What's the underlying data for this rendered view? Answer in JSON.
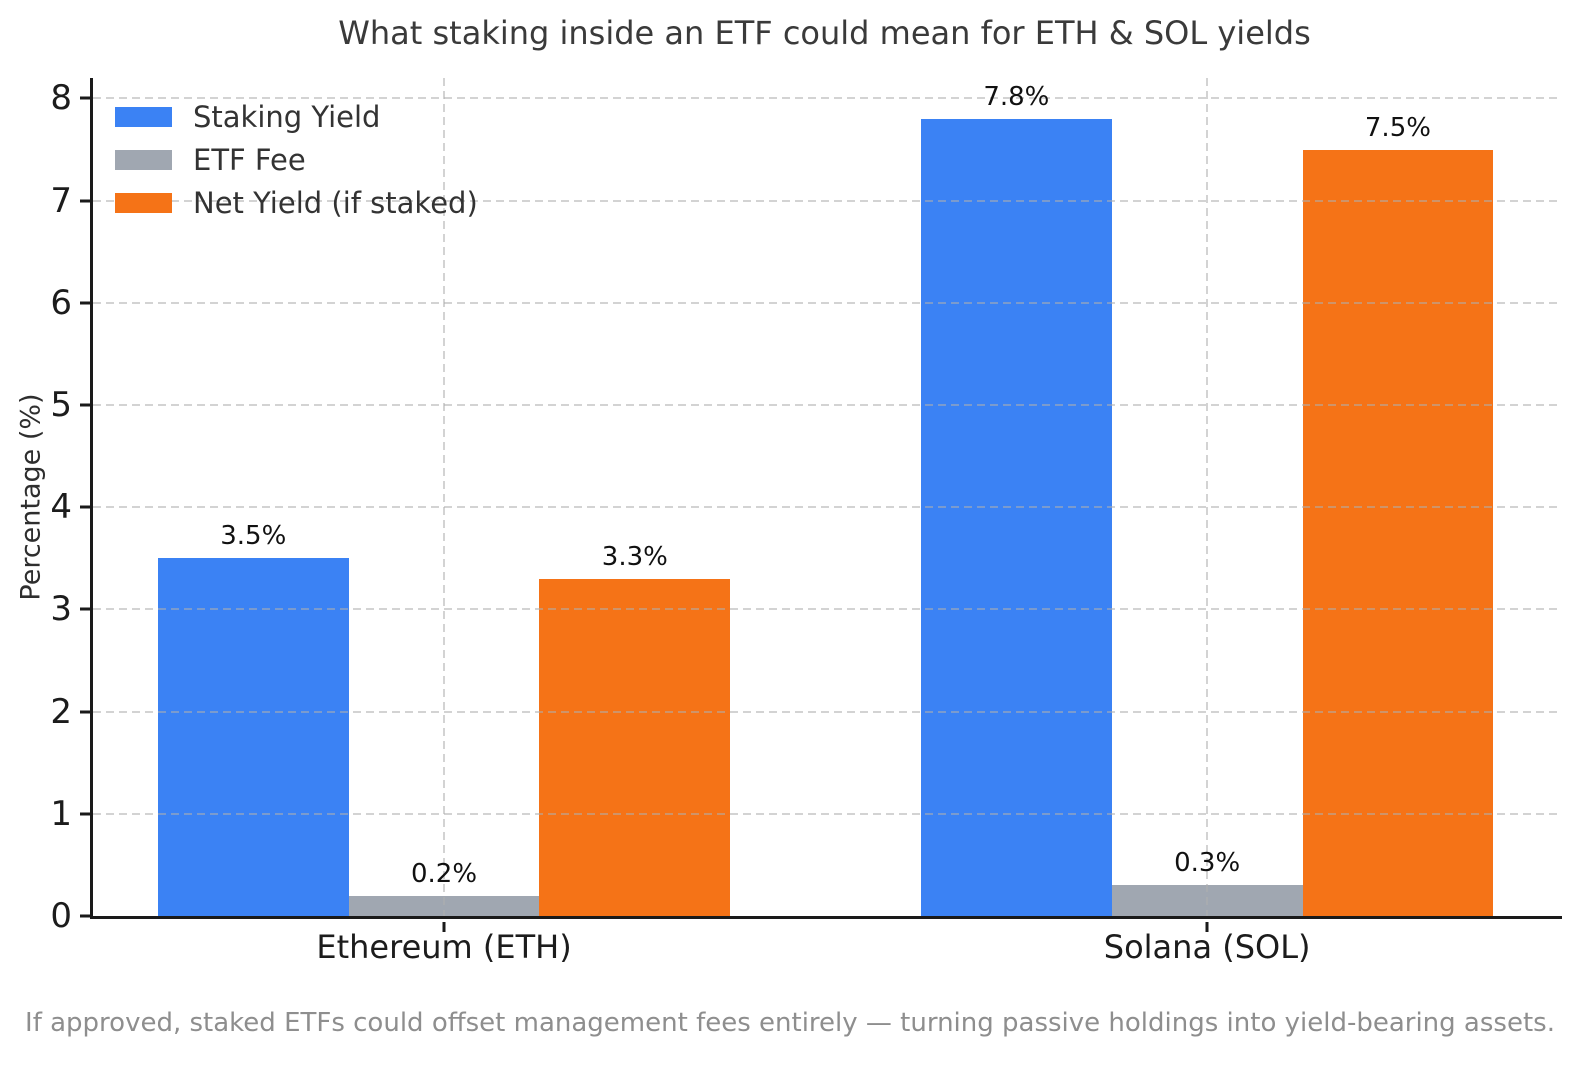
{
  "chart_data": {
    "type": "bar",
    "title": "What staking inside an ETF could mean for ETH & SOL yields",
    "categories": [
      "Ethereum (ETH)",
      "Solana (SOL)"
    ],
    "series": [
      {
        "name": "Staking Yield",
        "color": "#3b82f4",
        "values": [
          3.5,
          7.8
        ],
        "value_labels": [
          "3.5%",
          "7.8%"
        ]
      },
      {
        "name": "ETF Fee",
        "color": "#a0a7b1",
        "values": [
          0.2,
          0.3
        ],
        "value_labels": [
          "0.2%",
          "0.3%"
        ]
      },
      {
        "name": "Net Yield (if staked)",
        "color": "#f57317",
        "values": [
          3.3,
          7.5
        ],
        "value_labels": [
          "3.3%",
          "7.5%"
        ]
      }
    ],
    "xlabel": "",
    "ylabel": "Percentage (%)",
    "ylim": [
      0,
      8.2
    ],
    "yticks": [
      0,
      1,
      2,
      3,
      4,
      5,
      6,
      7,
      8
    ],
    "ytick_labels": [
      "0",
      "1",
      "2",
      "3",
      "4",
      "5",
      "6",
      "7",
      "8"
    ],
    "xlim": [
      -0.46,
      1.465
    ],
    "bar_width": 0.25,
    "grid": true,
    "grid_style": "dashed",
    "legend_position": "upper left",
    "footnote": "If approved, staked ETFs could offset management fees entirely — turning passive holdings into yield-bearing assets."
  }
}
